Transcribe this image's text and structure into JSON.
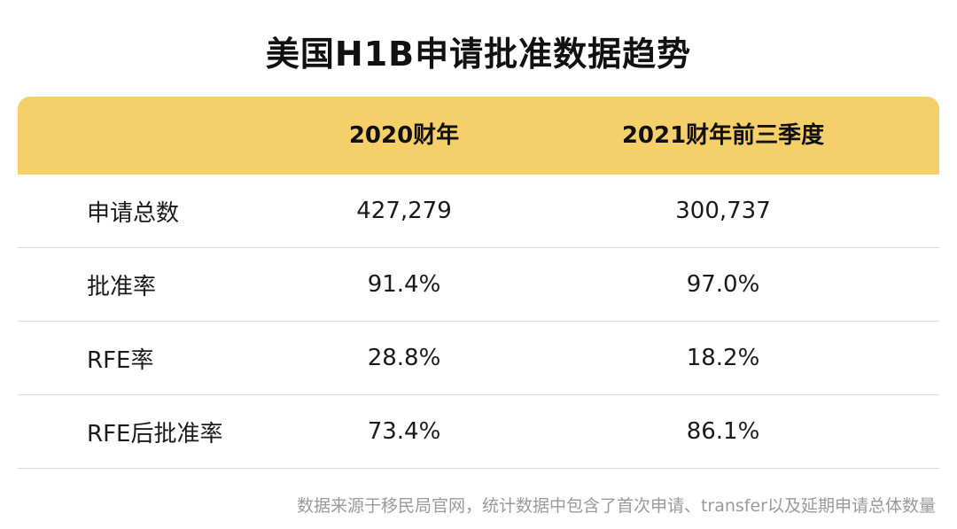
{
  "title": "美国H1B申请批准数据趋势",
  "chart_data": {
    "type": "table",
    "columns": [
      "",
      "2020财年",
      "2021财年前三季度"
    ],
    "rows": [
      {
        "label": "申请总数",
        "values": [
          "427,279",
          "300,737"
        ]
      },
      {
        "label": "批准率",
        "values": [
          "91.4%",
          "97.0%"
        ]
      },
      {
        "label": "RFE率",
        "values": [
          "28.8%",
          "18.2%"
        ]
      },
      {
        "label": "RFE后批准率",
        "values": [
          "73.4%",
          "86.1%"
        ]
      }
    ]
  },
  "colors": {
    "header_bg": "#f5cf6a",
    "divider": "#d9d9d9",
    "footnote": "#9a9a9a"
  },
  "footnote": "数据来源于移民局官网，统计数据中包含了首次申请、transfer以及延期申请总体数量"
}
